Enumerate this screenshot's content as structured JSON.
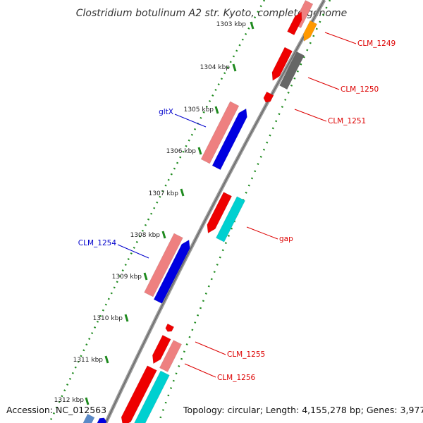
{
  "title": "Clostridium botulinum A2 str. Kyoto, complete genome",
  "accession": "Accession: NC_012563",
  "summary": "Topology: circular; Length: 4,155,278 bp; Genes: 3,977",
  "colors": {
    "backbone": "#7f7f7f",
    "tick": "#1e8a1e",
    "cds_red": "#ee0000",
    "cds_pink": "#ee8080",
    "cds_blue": "#0000e0",
    "cds_cyan": "#00d0d0",
    "cds_orange": "#ff9900",
    "cds_gray": "#666666",
    "label_red": "#dd0000",
    "label_blue": "#0000cc"
  },
  "scale_labels": [
    "1303 kbp",
    "1304 kbp",
    "1305 kbp",
    "1306 kbp",
    "1307 kbp",
    "1308 kbp",
    "1309 kbp",
    "1310 kbp",
    "1311 kbp",
    "1312 kbp"
  ],
  "gene_labels": [
    "CLM_1249",
    "CLM_1250",
    "CLM_1251",
    "gltX",
    "gap",
    "CLM_1254",
    "CLM_1255",
    "CLM_1256"
  ]
}
